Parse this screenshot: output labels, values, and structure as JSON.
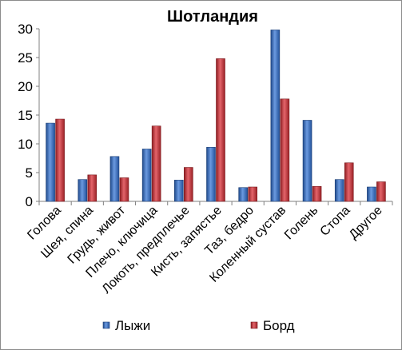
{
  "chart_data": {
    "type": "bar",
    "title": "Шотландия",
    "xlabel": "",
    "ylabel": "",
    "ylim": [
      0,
      30
    ],
    "yticks": [
      0,
      5,
      10,
      15,
      20,
      25,
      30
    ],
    "grid": false,
    "legend_position": "bottom",
    "categories": [
      "Голова",
      "Шея, спина",
      "Грудь, живот",
      "Плечо, ключица",
      "Локоть, предплечье",
      "Кисть, запястье",
      "Таз, бедро",
      "Коленный сустав",
      "Голень",
      "Стопа",
      "Другое"
    ],
    "series": [
      {
        "name": "Лыжи",
        "color": "#2f5fa8",
        "values": [
          13.6,
          3.8,
          7.8,
          9.1,
          3.7,
          9.4,
          2.4,
          29.8,
          14.1,
          3.8,
          2.5
        ]
      },
      {
        "name": "Борд",
        "color": "#b52a30",
        "values": [
          14.3,
          4.6,
          4.1,
          13.1,
          5.9,
          24.8,
          2.5,
          17.8,
          2.6,
          6.7,
          3.4
        ]
      }
    ]
  }
}
